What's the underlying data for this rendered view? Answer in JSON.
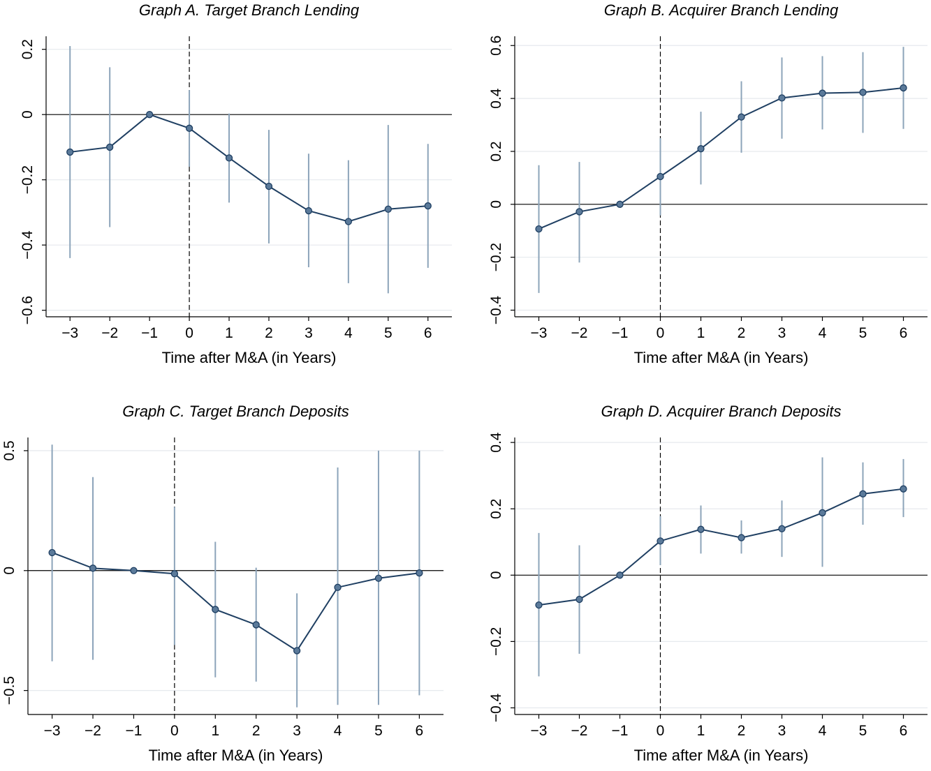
{
  "charts": [
    {
      "id": "A",
      "title": "Graph A. Target Branch Lending",
      "xlabel": "Time after M&A (in Years)",
      "ylabel": "",
      "type": "line",
      "x": [
        -3,
        -2,
        -1,
        0,
        1,
        2,
        3,
        4,
        5,
        6
      ],
      "y": [
        -0.115,
        -0.1,
        0.0,
        -0.042,
        -0.133,
        -0.22,
        -0.295,
        -0.328,
        -0.29,
        -0.28
      ],
      "ci_low": [
        -0.44,
        -0.345,
        0.0,
        -0.16,
        -0.27,
        -0.395,
        -0.468,
        -0.517,
        -0.548,
        -0.47
      ],
      "ci_high": [
        0.21,
        0.145,
        0.0,
        0.075,
        0.003,
        -0.047,
        -0.12,
        -0.14,
        -0.032,
        -0.09
      ],
      "ylim": [
        -0.62,
        0.24
      ],
      "yticks": [
        0.2,
        0,
        -0.2,
        -0.4,
        -0.6
      ],
      "ytick_labels": [
        "0.2",
        "0",
        "−0.2",
        "−0.4",
        "−0.6"
      ],
      "xticks": [
        -3,
        -2,
        -1,
        0,
        1,
        2,
        3,
        4,
        5,
        6
      ],
      "xtick_labels": [
        "−3",
        "−2",
        "−1",
        "0",
        "1",
        "2",
        "3",
        "4",
        "5",
        "6"
      ]
    },
    {
      "id": "B",
      "title": "Graph B. Acquirer Branch Lending",
      "xlabel": "Time after M&A (in Years)",
      "ylabel": "",
      "type": "line",
      "x": [
        -3,
        -2,
        -1,
        0,
        1,
        2,
        3,
        4,
        5,
        6
      ],
      "y": [
        -0.093,
        -0.028,
        0.0,
        0.105,
        0.21,
        0.33,
        0.402,
        0.42,
        0.423,
        0.44
      ],
      "ci_low": [
        -0.335,
        -0.22,
        0.0,
        -0.042,
        0.075,
        0.195,
        0.248,
        0.283,
        0.27,
        0.285
      ],
      "ci_high": [
        0.148,
        0.16,
        0.0,
        0.25,
        0.35,
        0.465,
        0.555,
        0.56,
        0.575,
        0.595
      ],
      "ylim": [
        -0.425,
        0.635
      ],
      "yticks": [
        0.6,
        0.4,
        0.2,
        0,
        -0.2,
        -0.4
      ],
      "ytick_labels": [
        "0.6",
        "0.4",
        "0.2",
        "0",
        "−0.2",
        "−0.4"
      ],
      "xticks": [
        -3,
        -2,
        -1,
        0,
        1,
        2,
        3,
        4,
        5,
        6
      ],
      "xtick_labels": [
        "−3",
        "−2",
        "−1",
        "0",
        "1",
        "2",
        "3",
        "4",
        "5",
        "6"
      ]
    },
    {
      "id": "C",
      "title": "Graph C. Target Branch Deposits",
      "xlabel": "Time after M&A (in Years)",
      "ylabel": "",
      "type": "line",
      "x": [
        -3,
        -2,
        -1,
        0,
        1,
        2,
        3,
        4,
        5,
        6
      ],
      "y": [
        0.075,
        0.01,
        0.0,
        -0.013,
        -0.162,
        -0.226,
        -0.334,
        -0.07,
        -0.032,
        -0.01
      ],
      "ci_low": [
        -0.378,
        -0.372,
        0.0,
        -0.31,
        -0.445,
        -0.463,
        -0.57,
        -0.56,
        -0.56,
        -0.52
      ],
      "ci_high": [
        0.525,
        0.39,
        0.0,
        0.265,
        0.12,
        0.012,
        -0.095,
        0.43,
        0.5,
        0.5
      ],
      "ylim": [
        -0.6,
        0.555
      ],
      "yticks": [
        0.5,
        0,
        -0.5
      ],
      "ytick_labels": [
        "0.5",
        "0",
        "−0.5"
      ],
      "xticks": [
        -3,
        -2,
        -1,
        0,
        1,
        2,
        3,
        4,
        5,
        6
      ],
      "xtick_labels": [
        "−3",
        "−2",
        "−1",
        "0",
        "1",
        "2",
        "3",
        "4",
        "5",
        "6"
      ]
    },
    {
      "id": "D",
      "title": "Graph D. Acquirer Branch Deposits",
      "xlabel": "Time after M&A (in Years)",
      "ylabel": "",
      "type": "line",
      "x": [
        -3,
        -2,
        -1,
        0,
        1,
        2,
        3,
        4,
        5,
        6
      ],
      "y": [
        -0.09,
        -0.073,
        0.0,
        0.103,
        0.138,
        0.113,
        0.14,
        0.188,
        0.245,
        0.26
      ],
      "ci_low": [
        -0.305,
        -0.237,
        0.0,
        0.03,
        0.065,
        0.065,
        0.055,
        0.025,
        0.152,
        0.175
      ],
      "ci_high": [
        0.127,
        0.09,
        0.0,
        0.178,
        0.21,
        0.165,
        0.225,
        0.355,
        0.34,
        0.35
      ],
      "ylim": [
        -0.42,
        0.415
      ],
      "yticks": [
        0.4,
        0.2,
        0,
        -0.2,
        -0.4
      ],
      "ytick_labels": [
        "0.4",
        "0.2",
        "0",
        "−0.2",
        "−0.4"
      ],
      "xticks": [
        -3,
        -2,
        -1,
        0,
        1,
        2,
        3,
        4,
        5,
        6
      ],
      "xtick_labels": [
        "−3",
        "−2",
        "−1",
        "0",
        "1",
        "2",
        "3",
        "4",
        "5",
        "6"
      ]
    }
  ],
  "chart_data": [
    {
      "type": "line",
      "title": "Graph A. Target Branch Lending",
      "xlabel": "Time after M&A (in Years)",
      "x": [
        -3,
        -2,
        -1,
        0,
        1,
        2,
        3,
        4,
        5,
        6
      ],
      "series": [
        {
          "values": [
            -0.115,
            -0.1,
            0.0,
            -0.042,
            -0.133,
            -0.22,
            -0.295,
            -0.328,
            -0.29,
            -0.28
          ],
          "ci_low": [
            -0.44,
            -0.345,
            0.0,
            -0.16,
            -0.27,
            -0.395,
            -0.468,
            -0.517,
            -0.548,
            -0.47
          ],
          "ci_high": [
            0.21,
            0.145,
            0.0,
            0.075,
            0.003,
            -0.047,
            -0.12,
            -0.14,
            -0.032,
            -0.09
          ]
        }
      ],
      "ylim": [
        -0.62,
        0.24
      ],
      "reference_lines": {
        "y": 0,
        "x": 0
      }
    },
    {
      "type": "line",
      "title": "Graph B. Acquirer Branch Lending",
      "xlabel": "Time after M&A (in Years)",
      "x": [
        -3,
        -2,
        -1,
        0,
        1,
        2,
        3,
        4,
        5,
        6
      ],
      "series": [
        {
          "values": [
            -0.093,
            -0.028,
            0.0,
            0.105,
            0.21,
            0.33,
            0.402,
            0.42,
            0.423,
            0.44
          ],
          "ci_low": [
            -0.335,
            -0.22,
            0.0,
            -0.042,
            0.075,
            0.195,
            0.248,
            0.283,
            0.27,
            0.285
          ],
          "ci_high": [
            0.148,
            0.16,
            0.0,
            0.25,
            0.35,
            0.465,
            0.555,
            0.56,
            0.575,
            0.595
          ]
        }
      ],
      "ylim": [
        -0.425,
        0.635
      ],
      "reference_lines": {
        "y": 0,
        "x": 0
      }
    },
    {
      "type": "line",
      "title": "Graph C. Target Branch Deposits",
      "xlabel": "Time after M&A (in Years)",
      "x": [
        -3,
        -2,
        -1,
        0,
        1,
        2,
        3,
        4,
        5,
        6
      ],
      "series": [
        {
          "values": [
            0.075,
            0.01,
            0.0,
            -0.013,
            -0.162,
            -0.226,
            -0.334,
            -0.07,
            -0.032,
            -0.01
          ],
          "ci_low": [
            -0.378,
            -0.372,
            0.0,
            -0.31,
            -0.445,
            -0.463,
            -0.57,
            -0.56,
            -0.56,
            -0.52
          ],
          "ci_high": [
            0.525,
            0.39,
            0.0,
            0.265,
            0.12,
            0.012,
            -0.095,
            0.43,
            0.5,
            0.5
          ]
        }
      ],
      "ylim": [
        -0.6,
        0.555
      ],
      "reference_lines": {
        "y": 0,
        "x": 0
      }
    },
    {
      "type": "line",
      "title": "Graph D. Acquirer Branch Deposits",
      "xlabel": "Time after M&A (in Years)",
      "x": [
        -3,
        -2,
        -1,
        0,
        1,
        2,
        3,
        4,
        5,
        6
      ],
      "series": [
        {
          "values": [
            -0.09,
            -0.073,
            0.0,
            0.103,
            0.138,
            0.113,
            0.14,
            0.188,
            0.245,
            0.26
          ],
          "ci_low": [
            -0.305,
            -0.237,
            0.0,
            0.03,
            0.065,
            0.065,
            0.055,
            0.025,
            0.152,
            0.175
          ],
          "ci_high": [
            0.127,
            0.09,
            0.0,
            0.178,
            0.21,
            0.165,
            0.225,
            0.355,
            0.34,
            0.35
          ]
        }
      ],
      "ylim": [
        -0.42,
        0.415
      ],
      "reference_lines": {
        "y": 0,
        "x": 0
      }
    }
  ],
  "colors": {
    "line": "#1f3f62",
    "marker_fill": "#5b7a9a",
    "marker_stroke": "#1f3f62",
    "ci": "#8ca4ba",
    "grid": "#e6e9ee",
    "axis": "#000000"
  }
}
